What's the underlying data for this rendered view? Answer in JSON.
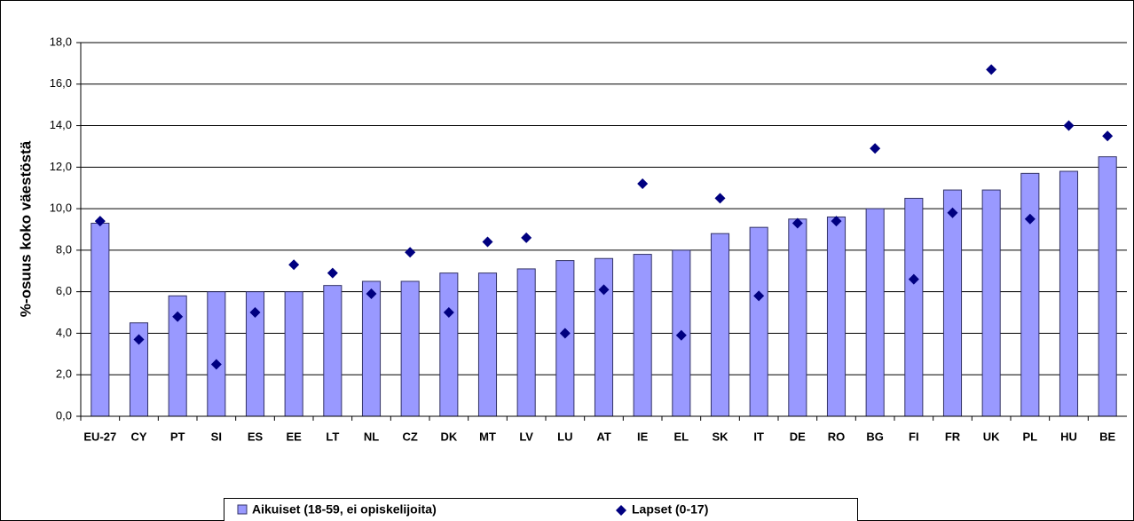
{
  "chart_data": {
    "type": "bar",
    "y_label": "%-osuus koko väestöstä",
    "categories": [
      "EU-27",
      "CY",
      "PT",
      "SI",
      "ES",
      "EE",
      "LT",
      "NL",
      "CZ",
      "DK",
      "MT",
      "LV",
      "LU",
      "AT",
      "IE",
      "EL",
      "SK",
      "IT",
      "DE",
      "RO",
      "BG",
      "FI",
      "FR",
      "UK",
      "PL",
      "HU",
      "BE"
    ],
    "series": [
      {
        "name": "Aikuiset (18-59, ei opiskelijoita)",
        "color": "#9999ff",
        "mark": "bar",
        "values": [
          9.3,
          4.5,
          5.8,
          6.0,
          6.0,
          6.0,
          6.3,
          6.5,
          6.5,
          6.9,
          6.9,
          7.1,
          7.5,
          7.6,
          7.8,
          8.0,
          8.8,
          9.1,
          9.5,
          9.6,
          10.0,
          10.5,
          10.9,
          10.9,
          11.7,
          11.8,
          12.5
        ]
      },
      {
        "name": "Lapset (0-17)",
        "color": "#000080",
        "mark": "diamond",
        "values": [
          9.4,
          3.7,
          4.8,
          2.5,
          5.0,
          7.3,
          6.9,
          5.9,
          7.9,
          5.0,
          8.4,
          8.6,
          4.0,
          6.1,
          11.2,
          3.9,
          10.5,
          5.8,
          9.3,
          9.4,
          12.9,
          6.6,
          9.8,
          16.7,
          9.5,
          14.0,
          13.5
        ]
      }
    ],
    "ylim": [
      0,
      18
    ],
    "yticks": [
      {
        "value": 0,
        "label": "0,0"
      },
      {
        "value": 2,
        "label": "2,0"
      },
      {
        "value": 4,
        "label": "4,0"
      },
      {
        "value": 6,
        "label": "6,0"
      },
      {
        "value": 8,
        "label": "8,0"
      },
      {
        "value": 10,
        "label": "10,0"
      },
      {
        "value": 12,
        "label": "12,0"
      },
      {
        "value": 14,
        "label": "14,0"
      },
      {
        "value": 16,
        "label": "16,0"
      },
      {
        "value": 18,
        "label": "18,0"
      }
    ],
    "grid": true,
    "legend": "bottom"
  }
}
